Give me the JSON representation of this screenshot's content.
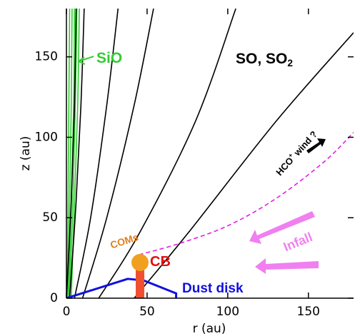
{
  "chart_data": {
    "type": "line",
    "xlabel": "r (au)",
    "ylabel": "z (au)",
    "xlim": [
      0,
      178
    ],
    "ylim": [
      0,
      180
    ],
    "xticks": [
      0,
      50,
      100,
      150
    ],
    "yticks": [
      0,
      50,
      100,
      150
    ],
    "series": [
      {
        "color": "#33cc33",
        "x": [
          0.5,
          1,
          1.5,
          2
        ],
        "values": [
          0,
          60,
          120,
          180
        ]
      },
      {
        "color": "#33cc33",
        "x": [
          1,
          2,
          3,
          3.5
        ],
        "values": [
          0,
          60,
          120,
          180
        ]
      },
      {
        "color": "#33cc33",
        "x": [
          1.5,
          3,
          4.5,
          5
        ],
        "values": [
          0,
          60,
          120,
          180
        ]
      },
      {
        "color": "#33cc33",
        "x": [
          2,
          4,
          5.5,
          6.5
        ],
        "values": [
          0,
          60,
          120,
          180
        ]
      },
      {
        "color": "#33cc33",
        "x": [
          3,
          5,
          7,
          8
        ],
        "values": [
          0,
          60,
          120,
          180
        ]
      },
      {
        "color": "#000000",
        "x": [
          0,
          3,
          5,
          6
        ],
        "values": [
          0,
          60,
          120,
          180
        ]
      },
      {
        "color": "#000000",
        "x": [
          2,
          6,
          9,
          11
        ],
        "values": [
          0,
          60,
          120,
          180
        ]
      },
      {
        "color": "#000000",
        "x": [
          5,
          15,
          25,
          32
        ],
        "values": [
          0,
          50,
          120,
          180
        ]
      },
      {
        "color": "#000000",
        "x": [
          10,
          25,
          42,
          54
        ],
        "values": [
          0,
          50,
          120,
          180
        ]
      },
      {
        "color": "#000000",
        "x": [
          20,
          45,
          80,
          105
        ],
        "values": [
          0,
          40,
          110,
          180
        ]
      },
      {
        "color": "#000000",
        "x": [
          42,
          75,
          130,
          178
        ],
        "values": [
          0,
          40,
          110,
          165
        ]
      },
      {
        "color": "#e020e0",
        "dashed": true,
        "x": [
          45,
          70,
          100,
          130,
          160,
          178
        ],
        "values": [
          27,
          34,
          45,
          62,
          85,
          103
        ]
      },
      {
        "color": "#1010e0",
        "x": [
          0,
          38,
          48,
          68,
          68
        ],
        "values": [
          0,
          12,
          11,
          3,
          0
        ]
      }
    ],
    "annotations": [
      {
        "text": "SiO",
        "color": "#33cc33"
      },
      {
        "text": "SO, SO",
        "sub": "2",
        "color": "#000000"
      },
      {
        "text": "HCO",
        "sup": "+",
        "after": " wind ?",
        "color": "#000000"
      },
      {
        "text": "COMs",
        "color": "#e08020"
      },
      {
        "text": "CB",
        "color": "#e01010"
      },
      {
        "text": "Infall",
        "color": "#f080f0"
      },
      {
        "text": "Dust disk",
        "color": "#1010e0"
      }
    ]
  }
}
